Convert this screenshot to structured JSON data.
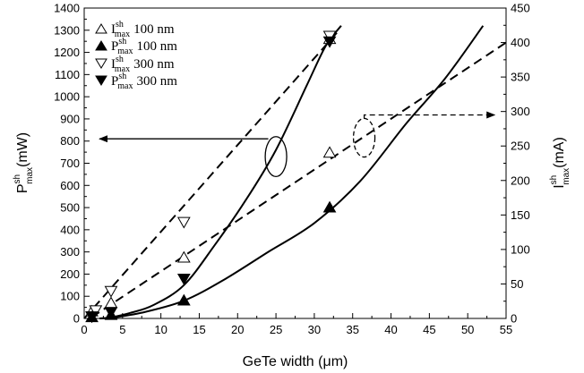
{
  "chart_data": {
    "type": "scatter",
    "xlabel": "GeTe width (μm)",
    "xlim": [
      0,
      55
    ],
    "x_ticks": [
      0,
      5,
      10,
      15,
      20,
      25,
      30,
      35,
      40,
      45,
      50,
      55
    ],
    "ylabel_left": {
      "main": "P",
      "sup": "sh",
      "sub": "max",
      "unit": "(mW)"
    },
    "ylim_left": [
      0,
      1400
    ],
    "y_ticks_left": [
      0,
      100,
      200,
      300,
      400,
      500,
      600,
      700,
      800,
      900,
      1000,
      1100,
      1200,
      1300,
      1400
    ],
    "ylabel_right": {
      "main": "I",
      "sup": "sh",
      "sub": "max",
      "unit": "(mA)"
    },
    "ylim_right": [
      0,
      450
    ],
    "y_ticks_right": [
      0,
      50,
      100,
      150,
      200,
      250,
      300,
      350,
      400,
      450
    ],
    "grid": false,
    "legend_position": "top-left",
    "series": [
      {
        "name": "I 100 nm",
        "legend": {
          "main": "I",
          "sup": "sh",
          "sub": "max",
          "tail": "100 nm"
        },
        "marker": "triangle-up-open",
        "axis": "right",
        "x": [
          1,
          3.5,
          13,
          32,
          32
        ],
        "y": [
          10,
          22,
          88,
          240,
          405
        ]
      },
      {
        "name": "P 100 nm",
        "legend": {
          "main": "P",
          "sup": "sh",
          "sub": "max",
          "tail": "100 nm"
        },
        "marker": "triangle-up-filled",
        "axis": "left",
        "x": [
          1,
          3.5,
          13,
          32
        ],
        "y": [
          5,
          15,
          80,
          500
        ]
      },
      {
        "name": "I 300 nm",
        "legend": {
          "main": "I",
          "sup": "sh",
          "sub": "max",
          "tail": "300 nm"
        },
        "marker": "triangle-down-open",
        "axis": "right",
        "x": [
          1,
          1.5,
          3.5,
          13,
          32
        ],
        "y": [
          3,
          12,
          40,
          140,
          410
        ]
      },
      {
        "name": "P 300 nm",
        "legend": {
          "main": "P",
          "sup": "sh",
          "sub": "max",
          "tail": "300 nm"
        },
        "marker": "triangle-down-filled",
        "axis": "left",
        "x": [
          1,
          3.5,
          13,
          32
        ],
        "y": [
          10,
          30,
          180,
          1250
        ]
      }
    ],
    "curves": [
      {
        "style": "solid",
        "axis": "left",
        "x": [
          2,
          3.5,
          6,
          9,
          13,
          17,
          21,
          25,
          29,
          31.5,
          33.5
        ],
        "y": [
          0,
          5,
          25,
          60,
          150,
          330,
          530,
          760,
          1050,
          1230,
          1320
        ]
      },
      {
        "style": "solid",
        "axis": "left",
        "x": [
          2,
          4,
          8,
          13,
          18,
          24,
          30,
          36,
          42,
          47,
          52
        ],
        "y": [
          0,
          5,
          30,
          80,
          170,
          300,
          430,
          620,
          880,
          1080,
          1320
        ]
      },
      {
        "style": "dashed",
        "axis": "right",
        "x": [
          0,
          33
        ],
        "y": [
          0,
          415
        ]
      },
      {
        "style": "dashed",
        "axis": "right",
        "x": [
          1,
          55
        ],
        "y": [
          2,
          400
        ]
      }
    ],
    "annotations": [
      {
        "type": "ellipse",
        "style": "solid",
        "cx": 25,
        "cy": 730,
        "rx": 1.4,
        "ry": 90,
        "axis": "left"
      },
      {
        "type": "arrow",
        "style": "solid",
        "axis": "left",
        "points": [
          [
            24,
            810
          ],
          [
            2,
            810
          ]
        ]
      },
      {
        "type": "ellipse",
        "style": "dashed",
        "cx": 36.5,
        "cy": 262,
        "rx": 1.4,
        "ry": 28,
        "axis": "right"
      },
      {
        "type": "arrow",
        "style": "dashed",
        "axis": "right",
        "points": [
          [
            36.5,
            290
          ],
          [
            36.5,
            295
          ],
          [
            53.5,
            295
          ]
        ]
      }
    ]
  }
}
